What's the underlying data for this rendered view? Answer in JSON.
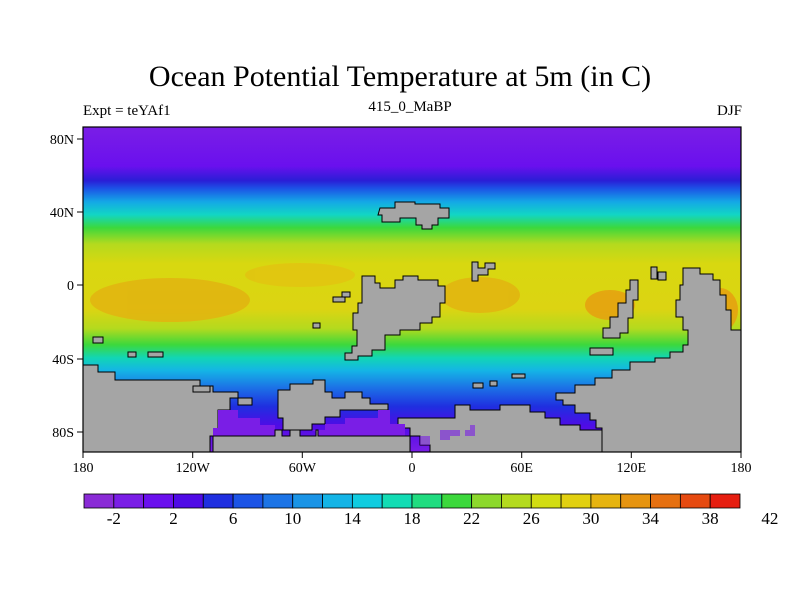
{
  "title": "Ocean Potential Temperature at 5m (in C)",
  "left_label": "Expt = teYAf1",
  "center_label": "415_0_MaBP",
  "right_label": "DJF",
  "colors": {
    "land": "#a5a5a5",
    "border": "#000000",
    "palette": [
      "#8a2bd6",
      "#7a1ee6",
      "#6a10ee",
      "#4f0be6",
      "#1f2fe0",
      "#1c54e6",
      "#1c74e6",
      "#1a94e6",
      "#14b4e6",
      "#10cce0",
      "#12dcb4",
      "#20dc80",
      "#3cd83c",
      "#8cd82c",
      "#b4da1e",
      "#d2dc12",
      "#e2d010",
      "#e6b410",
      "#e69410",
      "#e67010",
      "#e64a10",
      "#e61e10"
    ]
  },
  "colorbar": {
    "labels": [
      "-2",
      "2",
      "6",
      "10",
      "14",
      "18",
      "22",
      "26",
      "30",
      "34",
      "38",
      "42"
    ]
  },
  "axes": {
    "x_ticks": [
      "180",
      "120W",
      "60W",
      "0",
      "60E",
      "120E",
      "180"
    ],
    "y_ticks": [
      "80N",
      "40N",
      "0",
      "40S",
      "80S"
    ]
  }
}
